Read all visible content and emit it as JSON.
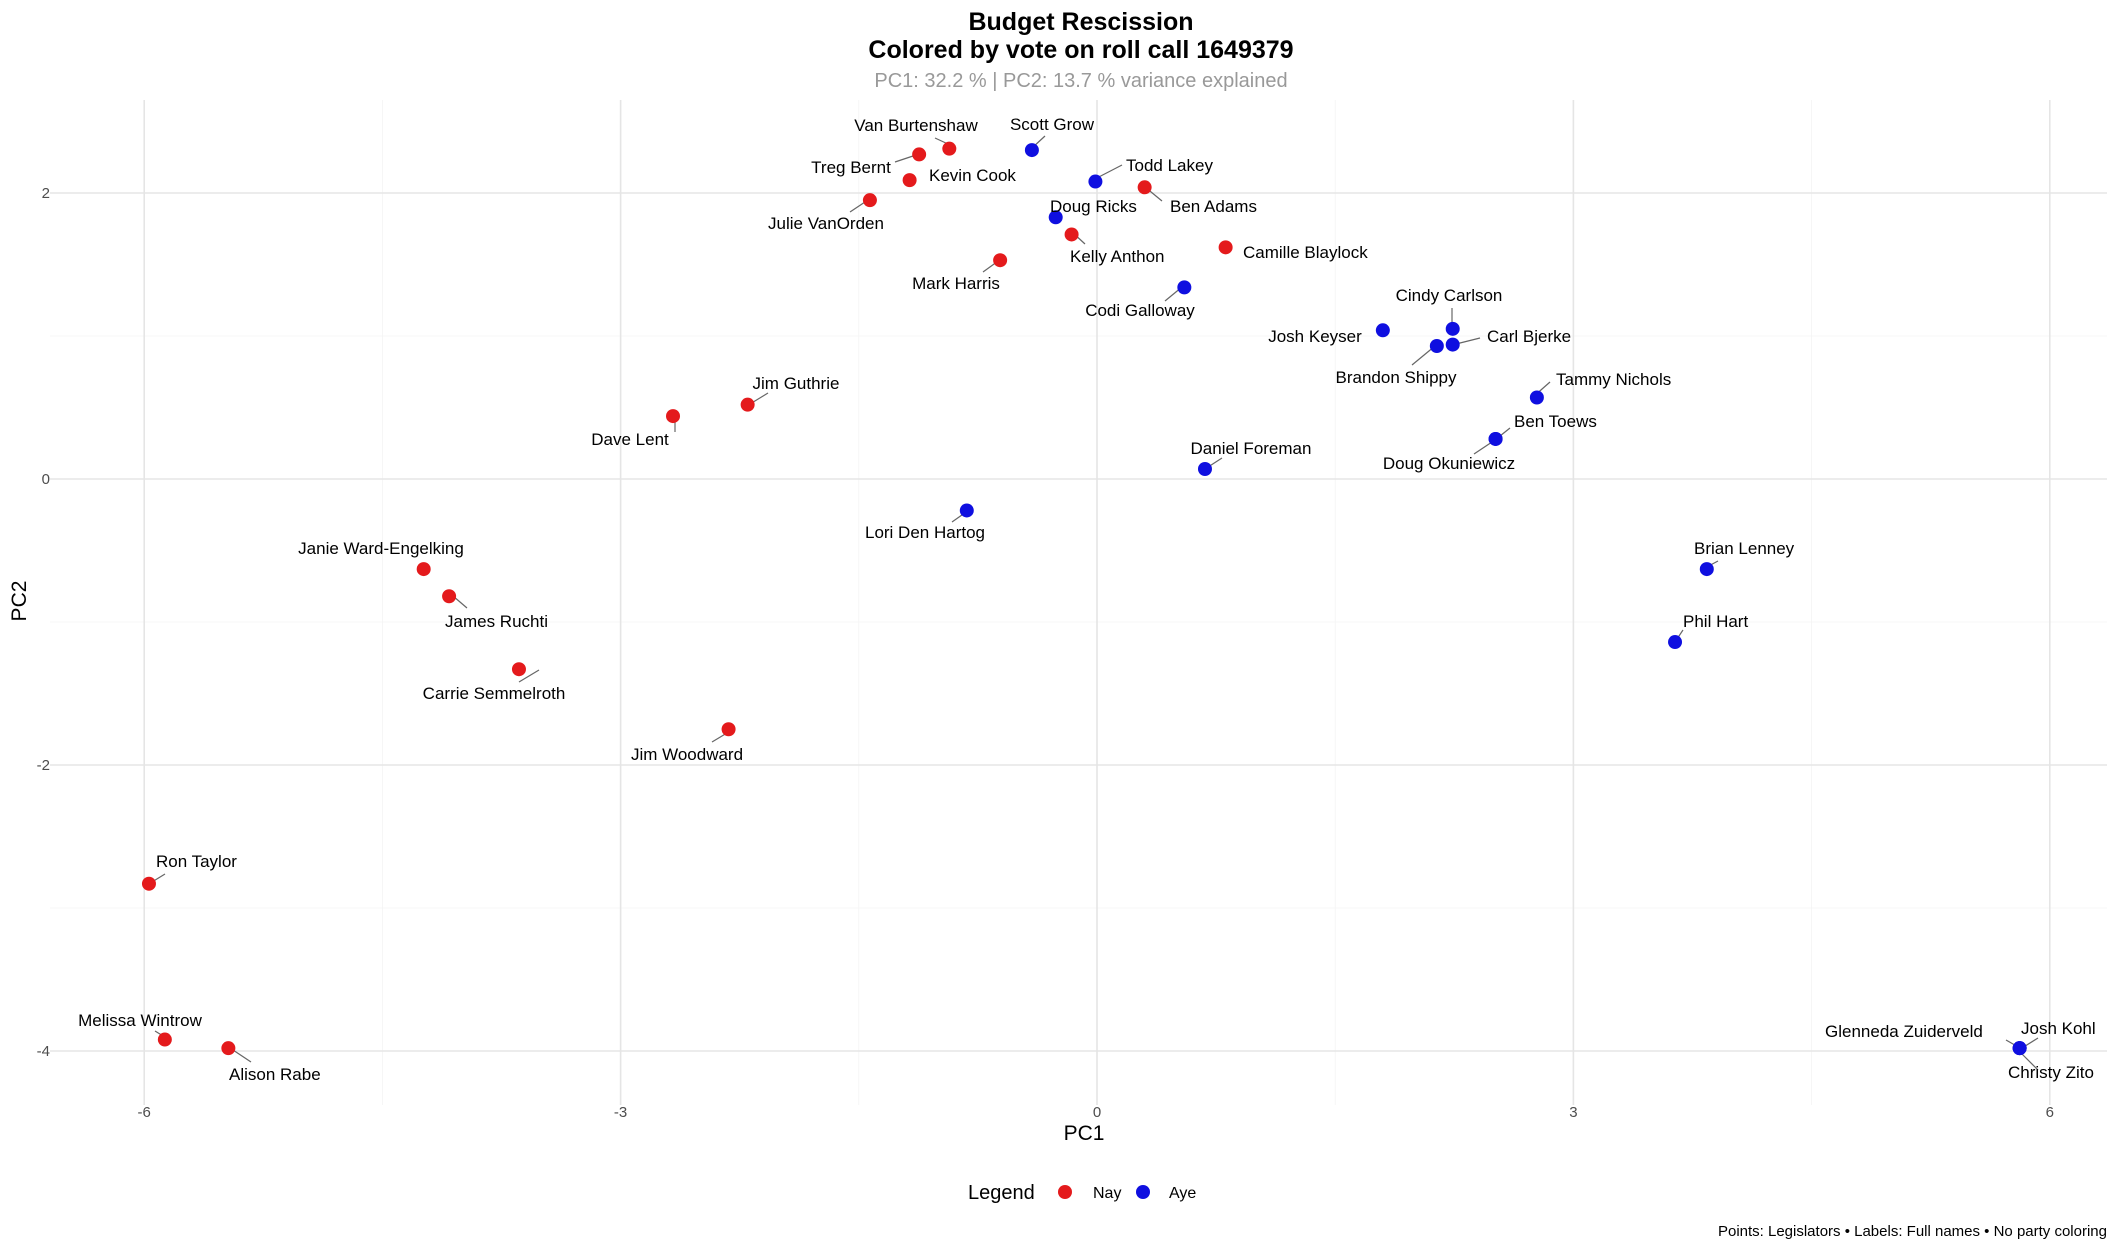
{
  "chart_data": {
    "type": "scatter",
    "title": "Budget Rescission",
    "subtitle": "Colored by vote on roll call 1649379",
    "variance_note": "PC1: 32.2 % | PC2: 13.7 % variance explained",
    "xlabel": "PC1",
    "ylabel": "PC2",
    "xlim": [
      -6.3,
      6.4
    ],
    "ylim": [
      -4.35,
      2.5
    ],
    "x_ticks": [
      -6,
      -3,
      0,
      3,
      6
    ],
    "y_ticks": [
      -4,
      -2,
      0,
      2
    ],
    "grid": true,
    "legend": {
      "title": "Legend",
      "position": "bottom",
      "items": [
        {
          "label": "Nay",
          "color": "#e41a1c"
        },
        {
          "label": "Aye",
          "color": "#0f0fe0"
        }
      ]
    },
    "caption": "Points: Legislators • Labels: Full names • No party coloring",
    "points": [
      {
        "name": "Van Burtenshaw",
        "x": -0.93,
        "y": 2.31,
        "vote": "Nay"
      },
      {
        "name": "Treg Bernt",
        "x": -1.12,
        "y": 2.27,
        "vote": "Nay"
      },
      {
        "name": "Kevin Cook",
        "x": -1.18,
        "y": 2.09,
        "vote": "Nay"
      },
      {
        "name": "Julie VanOrden",
        "x": -1.43,
        "y": 1.95,
        "vote": "Nay"
      },
      {
        "name": "Scott Grow",
        "x": -0.41,
        "y": 2.3,
        "vote": "Aye"
      },
      {
        "name": "Todd Lakey",
        "x": -0.01,
        "y": 2.08,
        "vote": "Aye"
      },
      {
        "name": "Ben Adams",
        "x": 0.3,
        "y": 2.04,
        "vote": "Nay"
      },
      {
        "name": "Doug Ricks",
        "x": -0.26,
        "y": 1.83,
        "vote": "Aye"
      },
      {
        "name": "Kelly Anthon",
        "x": -0.16,
        "y": 1.71,
        "vote": "Nay"
      },
      {
        "name": "Camille Blaylock",
        "x": 0.81,
        "y": 1.62,
        "vote": "Nay"
      },
      {
        "name": "Mark Harris",
        "x": -0.61,
        "y": 1.53,
        "vote": "Nay"
      },
      {
        "name": "Codi Galloway",
        "x": 0.55,
        "y": 1.34,
        "vote": "Aye"
      },
      {
        "name": "Cindy Carlson",
        "x": 2.24,
        "y": 1.05,
        "vote": "Aye"
      },
      {
        "name": "Josh Keyser",
        "x": 1.8,
        "y": 1.04,
        "vote": "Aye"
      },
      {
        "name": "Carl Bjerke",
        "x": 2.24,
        "y": 0.94,
        "vote": "Aye"
      },
      {
        "name": "Brandon Shippy",
        "x": 2.14,
        "y": 0.93,
        "vote": "Aye"
      },
      {
        "name": "Tammy Nichols",
        "x": 2.77,
        "y": 0.57,
        "vote": "Aye"
      },
      {
        "name": "Ben Toews",
        "x": 2.51,
        "y": 0.28,
        "vote": "Aye"
      },
      {
        "name": "Doug Okuniewicz",
        "x": 2.51,
        "y": 0.28,
        "vote": "Aye"
      },
      {
        "name": "Daniel Foreman",
        "x": 0.68,
        "y": 0.07,
        "vote": "Aye"
      },
      {
        "name": "Jim Guthrie",
        "x": -2.2,
        "y": 0.52,
        "vote": "Nay"
      },
      {
        "name": "Dave Lent",
        "x": -2.67,
        "y": 0.44,
        "vote": "Nay"
      },
      {
        "name": "Lori Den Hartog",
        "x": -0.82,
        "y": -0.22,
        "vote": "Aye"
      },
      {
        "name": "Janie Ward-Engelking",
        "x": -4.24,
        "y": -0.63,
        "vote": "Nay"
      },
      {
        "name": "James Ruchti",
        "x": -4.08,
        "y": -0.82,
        "vote": "Nay"
      },
      {
        "name": "Carrie Semmelroth",
        "x": -3.64,
        "y": -1.33,
        "vote": "Nay"
      },
      {
        "name": "Jim Woodward",
        "x": -2.32,
        "y": -1.75,
        "vote": "Nay"
      },
      {
        "name": "Brian Lenney",
        "x": 3.84,
        "y": -0.63,
        "vote": "Aye"
      },
      {
        "name": "Phil Hart",
        "x": 3.64,
        "y": -1.14,
        "vote": "Aye"
      },
      {
        "name": "Ron Taylor",
        "x": -5.97,
        "y": -2.83,
        "vote": "Nay"
      },
      {
        "name": "Melissa Wintrow",
        "x": -5.87,
        "y": -3.92,
        "vote": "Nay"
      },
      {
        "name": "Alison Rabe",
        "x": -5.47,
        "y": -3.98,
        "vote": "Nay"
      },
      {
        "name": "Glenneda Zuiderveld",
        "x": 5.81,
        "y": -3.98,
        "vote": "Aye"
      },
      {
        "name": "Josh Kohl",
        "x": 5.81,
        "y": -3.98,
        "vote": "Aye"
      },
      {
        "name": "Christy Zito",
        "x": 5.81,
        "y": -3.98,
        "vote": "Aye"
      }
    ]
  }
}
